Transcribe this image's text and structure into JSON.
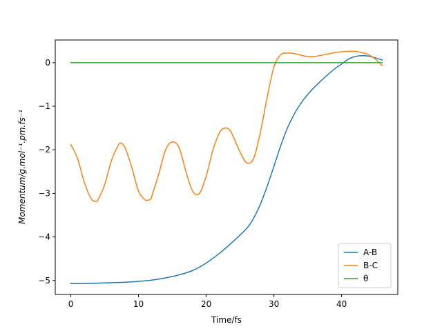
{
  "chart_data": {
    "type": "line",
    "title": "",
    "xlabel": "Time/fs",
    "ylabel": "Momentum/g.mol⁻¹.pm.fs⁻¹",
    "xlim": [
      -2.3,
      48.3
    ],
    "ylim": [
      -5.32,
      0.52
    ],
    "xticks": [
      0,
      10,
      20,
      30,
      40
    ],
    "xtick_labels": [
      "0",
      "10",
      "20",
      "30",
      "40"
    ],
    "yticks": [
      0,
      -1,
      -2,
      -3,
      -4,
      -5
    ],
    "ytick_labels": [
      "0",
      "−1",
      "−2",
      "−3",
      "−4",
      "−5"
    ],
    "grid": false,
    "legend_position": "bottom-right",
    "series": [
      {
        "name": "A-B",
        "color": "#1f77b4",
        "x": [
          0,
          2,
          4,
          6,
          8,
          10,
          12,
          14,
          16,
          18,
          20,
          22,
          24,
          26,
          27,
          28,
          29,
          30,
          31,
          32,
          33,
          34,
          35,
          36,
          37,
          38,
          39,
          40,
          41,
          42,
          43,
          44,
          45,
          46
        ],
        "y": [
          -5.07,
          -5.07,
          -5.06,
          -5.05,
          -5.04,
          -5.02,
          -4.99,
          -4.94,
          -4.87,
          -4.77,
          -4.6,
          -4.37,
          -4.1,
          -3.8,
          -3.57,
          -3.25,
          -2.84,
          -2.38,
          -1.91,
          -1.5,
          -1.18,
          -0.93,
          -0.73,
          -0.56,
          -0.41,
          -0.27,
          -0.14,
          -0.03,
          0.08,
          0.14,
          0.16,
          0.15,
          0.11,
          0.06
        ]
      },
      {
        "name": "B-C",
        "color": "#ff7f0e",
        "x": [
          0,
          1,
          2,
          3,
          3.6,
          4,
          5,
          6,
          7,
          7.4,
          8,
          9,
          10,
          11,
          11.8,
          12,
          13,
          14,
          15,
          16,
          17,
          18,
          19,
          20,
          21,
          22,
          22.8,
          23.5,
          24,
          25,
          26,
          27,
          28,
          29,
          30,
          31,
          32,
          33,
          34,
          35,
          36,
          37,
          38,
          39,
          40,
          41,
          42,
          43,
          44,
          45,
          46
        ],
        "y": [
          -1.88,
          -2.2,
          -2.75,
          -3.12,
          -3.18,
          -3.15,
          -2.8,
          -2.25,
          -1.9,
          -1.85,
          -1.95,
          -2.4,
          -2.95,
          -3.15,
          -3.13,
          -3.05,
          -2.55,
          -2.0,
          -1.82,
          -1.95,
          -2.5,
          -2.95,
          -3.0,
          -2.6,
          -2.0,
          -1.6,
          -1.5,
          -1.55,
          -1.7,
          -2.05,
          -2.3,
          -2.2,
          -1.6,
          -0.8,
          -0.1,
          0.18,
          0.22,
          0.21,
          0.17,
          0.14,
          0.14,
          0.17,
          0.2,
          0.23,
          0.25,
          0.26,
          0.26,
          0.23,
          0.18,
          0.08,
          -0.07
        ]
      },
      {
        "name": "θ",
        "color": "#2ca02c",
        "x": [
          0,
          46
        ],
        "y": [
          0,
          0
        ]
      }
    ]
  }
}
